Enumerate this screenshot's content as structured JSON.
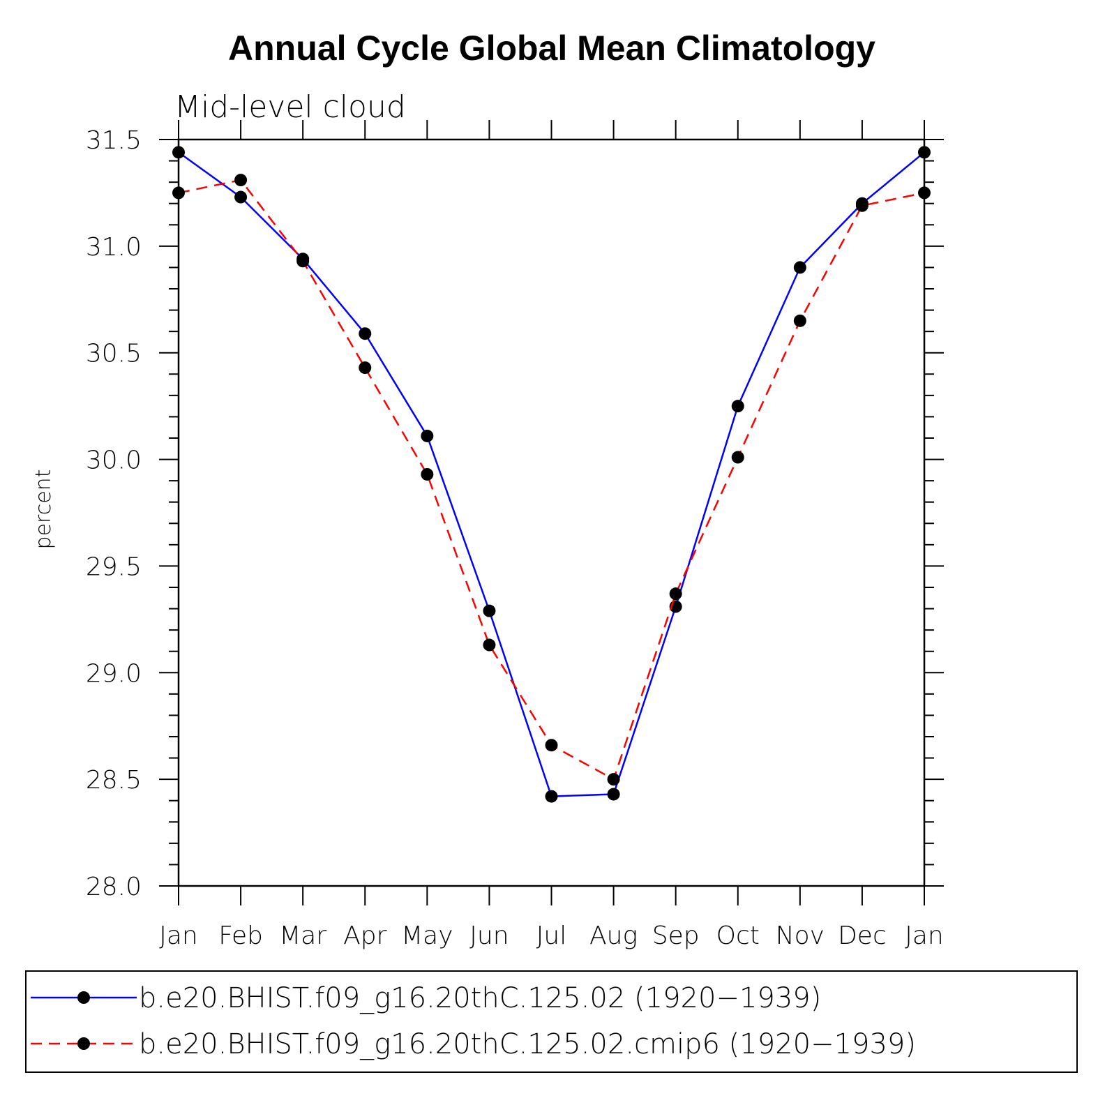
{
  "chart_data": {
    "type": "line",
    "title": "Annual Cycle Global Mean Climatology",
    "subtitle": "Mid-level cloud",
    "xlabel": "",
    "ylabel": "percent",
    "categories": [
      "Jan",
      "Feb",
      "Mar",
      "Apr",
      "May",
      "Jun",
      "Jul",
      "Aug",
      "Sep",
      "Oct",
      "Nov",
      "Dec",
      "Jan"
    ],
    "ylim": [
      28.0,
      31.5
    ],
    "yticks": [
      "28.0",
      "28.5",
      "29.0",
      "29.5",
      "30.0",
      "30.5",
      "31.0",
      "31.5"
    ],
    "legend_position": "bottom",
    "series": [
      {
        "name": "b.e20.BHIST.f09_g16.20thC.125.02 (1920−1939)",
        "color": "#0000ff",
        "style": "solid",
        "values": [
          31.44,
          31.23,
          30.94,
          30.59,
          30.11,
          29.29,
          28.42,
          28.43,
          29.31,
          30.25,
          30.9,
          31.2,
          31.44
        ]
      },
      {
        "name": "b.e20.BHIST.f09_g16.20thC.125.02.cmip6 (1920−1939)",
        "color": "#ff0000",
        "style": "dashed",
        "values": [
          31.25,
          31.31,
          30.93,
          30.43,
          29.93,
          29.13,
          28.66,
          28.5,
          29.37,
          30.01,
          30.65,
          31.19,
          31.25
        ]
      }
    ]
  }
}
